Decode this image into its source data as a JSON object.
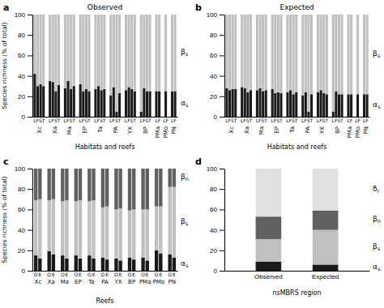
{
  "chart_data": [
    {
      "type": "bar",
      "stacked": true,
      "grid": false,
      "panel": "a",
      "title": "Observed",
      "x_label": "Habitats and reefs",
      "y_label": "Species richness (% of total)",
      "categories": [
        "Xc",
        "Xc",
        "Xc",
        "Xc",
        "Xa",
        "Xa",
        "Xa",
        "Xa",
        "Ma",
        "Ma",
        "Ma",
        "Ma",
        "EP",
        "EP",
        "EP",
        "EP",
        "Ta",
        "Ta",
        "Ta",
        "Ta",
        "PA",
        "PA",
        "PA",
        "PA",
        "YX",
        "YX",
        "YX",
        "YX",
        "BP",
        "BP",
        "BP",
        "BP",
        "PMa",
        "PMa",
        "PMo",
        "PN",
        "PN"
      ],
      "sub_categories": [
        "LFST",
        "LFST",
        "LFST",
        "LFST",
        "LFST",
        "LFST",
        "LFST",
        "LFST",
        "LFST",
        "LFST",
        "LFST",
        "LFST",
        "LFST",
        "LFST",
        "LFST",
        "LFST",
        "LFST",
        "LFST",
        "LFST",
        "LFST",
        "LFST",
        "LFST",
        "LFST",
        "LFST",
        "LFST",
        "LFST",
        "LFST",
        "LFST",
        "LFST",
        "LFST",
        "LFST",
        "LFST",
        "LF",
        "LF",
        "LF",
        "LF",
        "LF"
      ],
      "series": [
        {
          "name": "αs",
          "color": "#1a1a1a",
          "values": [
            42,
            30,
            32,
            30,
            35,
            34,
            25,
            31,
            28,
            35,
            27,
            30,
            32,
            25,
            27,
            25,
            27,
            30,
            26,
            27,
            21,
            29,
            5,
            23,
            26,
            29,
            27,
            25,
            5,
            28,
            25,
            25,
            25,
            25,
            25,
            25,
            25
          ]
        },
        {
          "name": "βs",
          "color": "#c0c0c0",
          "values": [
            58,
            70,
            68,
            70,
            65,
            66,
            75,
            69,
            72,
            65,
            73,
            70,
            68,
            75,
            73,
            75,
            73,
            70,
            74,
            73,
            79,
            71,
            95,
            77,
            74,
            71,
            73,
            75,
            95,
            72,
            75,
            75,
            75,
            75,
            75,
            75,
            75
          ]
        }
      ],
      "ylim": [
        0,
        100
      ],
      "yticks": [
        0,
        20,
        40,
        60,
        80,
        100
      ]
    },
    {
      "type": "bar",
      "stacked": true,
      "grid": false,
      "panel": "b",
      "title": "Expected",
      "x_label": "Habitats and reefs",
      "categories": [
        "Xc",
        "Xc",
        "Xc",
        "Xc",
        "Xa",
        "Xa",
        "Xa",
        "Xa",
        "Ma",
        "Ma",
        "Ma",
        "Ma",
        "EP",
        "EP",
        "EP",
        "EP",
        "Ta",
        "Ta",
        "Ta",
        "Ta",
        "PA",
        "PA",
        "PA",
        "PA",
        "YX",
        "YX",
        "YX",
        "YX",
        "BP",
        "BP",
        "BP",
        "BP",
        "PMa",
        "PMa",
        "PMo",
        "PN",
        "PN"
      ],
      "sub_categories": [
        "LFST",
        "LFST",
        "LFST",
        "LFST",
        "LFST",
        "LFST",
        "LFST",
        "LFST",
        "LFST",
        "LFST",
        "LFST",
        "LFST",
        "LFST",
        "LFST",
        "LFST",
        "LFST",
        "LFST",
        "LFST",
        "LFST",
        "LFST",
        "LFST",
        "LFST",
        "LFST",
        "LFST",
        "LFST",
        "LFST",
        "LFST",
        "LFST",
        "LFST",
        "LFST",
        "LFST",
        "LFST",
        "LF",
        "LF",
        "LF",
        "LF",
        "LF"
      ],
      "series": [
        {
          "name": "αs",
          "color": "#1a1a1a",
          "values": [
            28,
            26,
            27,
            27,
            29,
            28,
            24,
            26,
            26,
            28,
            25,
            26,
            27,
            23,
            24,
            23,
            24,
            26,
            22,
            24,
            21,
            24,
            5,
            22,
            24,
            26,
            23,
            22,
            5,
            25,
            22,
            22,
            22,
            22,
            22,
            22,
            22
          ]
        },
        {
          "name": "βs",
          "color": "#c0c0c0",
          "values": [
            72,
            74,
            73,
            73,
            71,
            72,
            76,
            74,
            74,
            72,
            75,
            74,
            73,
            77,
            76,
            77,
            76,
            74,
            78,
            76,
            79,
            76,
            95,
            78,
            76,
            74,
            77,
            78,
            95,
            75,
            78,
            78,
            78,
            78,
            78,
            78,
            78
          ]
        }
      ],
      "ylim": [
        0,
        100
      ],
      "yticks": [
        0,
        20,
        40,
        60,
        80,
        100
      ]
    },
    {
      "type": "bar",
      "stacked": true,
      "grid": false,
      "panel": "c",
      "x_label": "Reefs",
      "y_label": "Species richness (% of total)",
      "categories": [
        "Xc",
        "Xc",
        "Xa",
        "Xa",
        "Ma",
        "Ma",
        "EP",
        "EP",
        "Ta",
        "Ta",
        "PA",
        "PA",
        "YX",
        "YX",
        "BP",
        "BP",
        "PMa",
        "PMa",
        "PMo",
        "PMo",
        "PN",
        "PN"
      ],
      "sub_categories": [
        "O",
        "E",
        "O",
        "E",
        "O",
        "E",
        "O",
        "E",
        "O",
        "E",
        "O",
        "E",
        "O",
        "E",
        "O",
        "E",
        "O",
        "E",
        "O",
        "E",
        "O",
        "E"
      ],
      "series": [
        {
          "name": "αs",
          "color": "#1a1a1a",
          "values": [
            15,
            12,
            19,
            16,
            15,
            12,
            15,
            12,
            15,
            12,
            13,
            11,
            12,
            10,
            13,
            11,
            13,
            10,
            20,
            17,
            16,
            13
          ]
        },
        {
          "name": "βs",
          "color": "#c0c0c0",
          "values": [
            54,
            58,
            50,
            54,
            53,
            57,
            53,
            57,
            53,
            57,
            49,
            52,
            48,
            51,
            46,
            49,
            47,
            50,
            43,
            46,
            66,
            69
          ]
        },
        {
          "name": "βn",
          "color": "#606060",
          "values": [
            31,
            30,
            31,
            30,
            32,
            31,
            32,
            31,
            32,
            31,
            38,
            37,
            40,
            39,
            41,
            40,
            40,
            40,
            37,
            37,
            18,
            18
          ]
        }
      ],
      "ylim": [
        0,
        100
      ],
      "yticks": [
        0,
        20,
        40,
        60,
        80,
        100
      ]
    },
    {
      "type": "bar",
      "stacked": true,
      "grid": false,
      "panel": "d",
      "x_label": "nsMBRS region",
      "categories": [
        "Observed",
        "Expected"
      ],
      "series": [
        {
          "name": "αs",
          "color": "#1a1a1a",
          "values": [
            9,
            6
          ]
        },
        {
          "name": "βs",
          "color": "#c0c0c0",
          "values": [
            22,
            34
          ]
        },
        {
          "name": "βn",
          "color": "#606060",
          "values": [
            22,
            19
          ]
        },
        {
          "name": "δr",
          "color": "#e0e0e0",
          "values": [
            47,
            41
          ]
        }
      ],
      "ylim": [
        0,
        100
      ],
      "yticks": [
        0,
        20,
        40,
        60,
        80,
        100
      ]
    }
  ]
}
